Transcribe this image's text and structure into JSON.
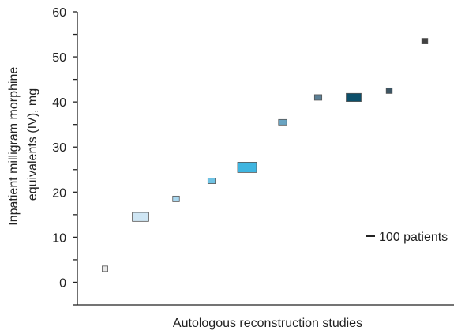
{
  "chart_data": {
    "type": "scatter",
    "xlabel": "Autologous reconstruction studies",
    "ylabel": [
      "Inpatient milligram morphine",
      "equivalents (IV), mg"
    ],
    "ylim": [
      -5,
      60
    ],
    "y_ticks": [
      0,
      10,
      20,
      30,
      40,
      50,
      60
    ],
    "grid": false,
    "legend": {
      "label": "100 patients",
      "placement": "right"
    },
    "points": [
      {
        "study": 1,
        "y": 3,
        "patients": 35,
        "color": "#e8e8e8"
      },
      {
        "study": 2,
        "y": 14.5,
        "patients": 300,
        "color": "#cfe6f4"
      },
      {
        "study": 3,
        "y": 18.5,
        "patients": 50,
        "color": "#a9d8f0"
      },
      {
        "study": 4,
        "y": 22.5,
        "patients": 60,
        "color": "#6fc2e3"
      },
      {
        "study": 5,
        "y": 25.5,
        "patients": 400,
        "color": "#3fb5e0"
      },
      {
        "study": 6,
        "y": 35.5,
        "patients": 75,
        "color": "#6aa4c2"
      },
      {
        "study": 7,
        "y": 41,
        "patients": 60,
        "color": "#5b8096"
      },
      {
        "study": 8,
        "y": 41,
        "patients": 250,
        "color": "#0c4f6a"
      },
      {
        "study": 9,
        "y": 42.5,
        "patients": 40,
        "color": "#3d5563"
      },
      {
        "study": 10,
        "y": 53.5,
        "patients": 40,
        "color": "#424242"
      }
    ]
  }
}
